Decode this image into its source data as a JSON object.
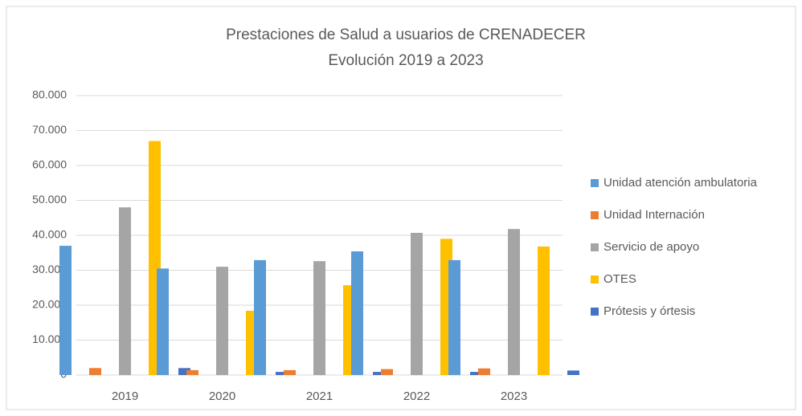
{
  "chart_data": {
    "type": "bar",
    "title": "Prestaciones de Salud a usuarios de CRENADECER",
    "subtitle": "Evolución 2019 a 2023",
    "categories": [
      "2019",
      "2020",
      "2021",
      "2022",
      "2023"
    ],
    "series": [
      {
        "name": "Unidad atención ambulatoria",
        "color": "#5b9bd5",
        "values": [
          37000,
          30500,
          32900,
          35400,
          32900
        ]
      },
      {
        "name": "Unidad Internación",
        "color": "#ed7d31",
        "values": [
          2000,
          1400,
          1400,
          1700,
          1900
        ]
      },
      {
        "name": "Servicio de apoyo",
        "color": "#a5a5a5",
        "values": [
          48000,
          31000,
          32600,
          40700,
          41800
        ]
      },
      {
        "name": "OTES",
        "color": "#ffc000",
        "values": [
          67000,
          18400,
          25700,
          39000,
          36800
        ]
      },
      {
        "name": "Prótesis y órtesis",
        "color": "#4472c4",
        "values": [
          2000,
          900,
          900,
          900,
          1300
        ]
      }
    ],
    "ylim": [
      0,
      80000
    ],
    "yticks": [
      0,
      {
        "value": 10000,
        "label": "10.000"
      },
      {
        "value": 20000,
        "label": "20.000"
      },
      {
        "value": 30000,
        "label": "30.000"
      },
      {
        "value": 40000,
        "label": "40.000"
      },
      {
        "value": 50000,
        "label": "50.000"
      },
      {
        "value": 60000,
        "label": "60.000"
      },
      {
        "value": 70000,
        "label": "70.000"
      },
      {
        "value": 80000,
        "label": "80.000"
      }
    ],
    "grid": true,
    "legend": "right"
  }
}
